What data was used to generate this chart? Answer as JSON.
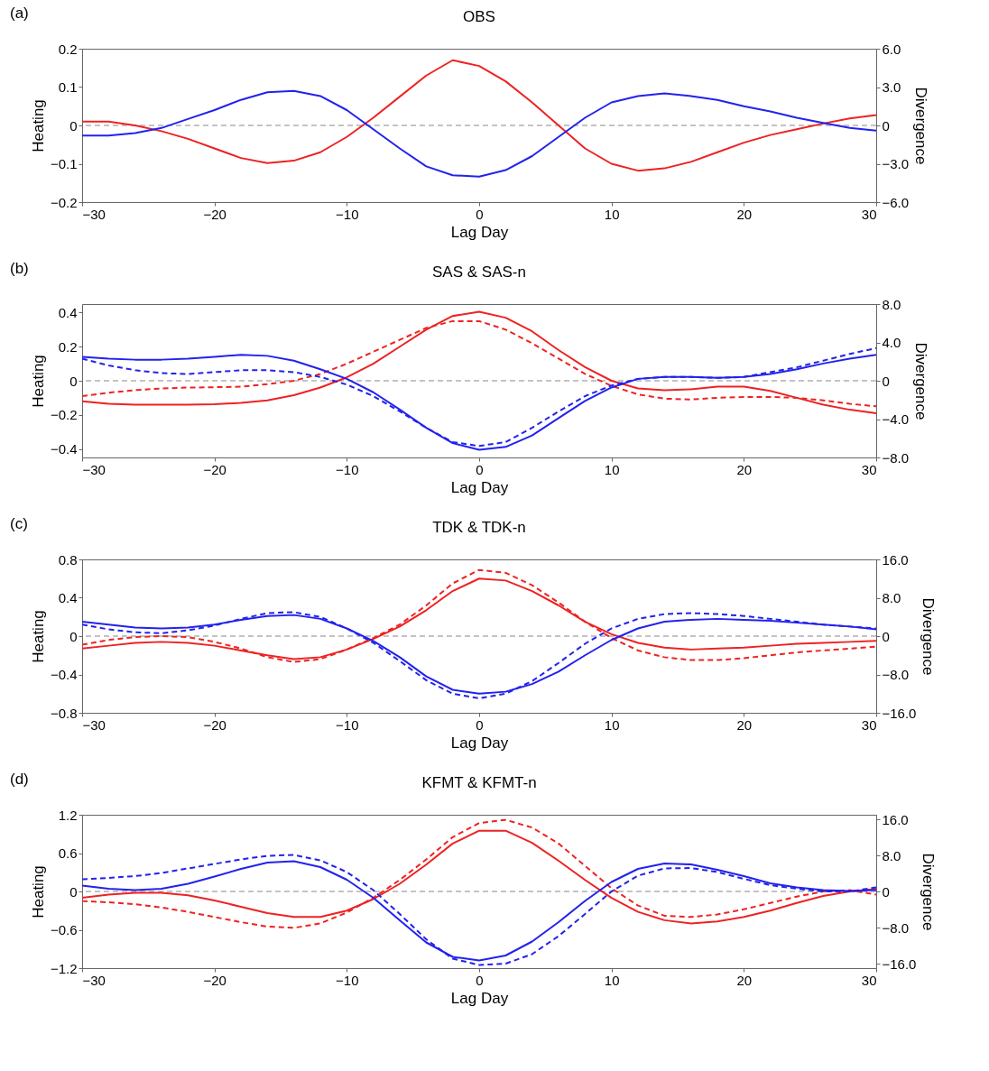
{
  "chart_data": [
    {
      "type": "line",
      "title": "OBS",
      "annotations": [
        "(a)"
      ],
      "xlabel": "Lag Day",
      "ylabel": "Heating",
      "y2label": "Divergence",
      "grid": false,
      "legend": false,
      "marker": "none",
      "x": [
        -30,
        -28,
        -26,
        -24,
        -22,
        -20,
        -18,
        -16,
        -14,
        -12,
        -10,
        -8,
        -6,
        -4,
        -2,
        0,
        2,
        4,
        6,
        8,
        10,
        12,
        14,
        16,
        18,
        20,
        22,
        24,
        26,
        28,
        30
      ],
      "xlim": [
        -30,
        30
      ],
      "xticks": [
        -30,
        -20,
        -10,
        0,
        10,
        20,
        30
      ],
      "ylim": [
        -0.2,
        0.2
      ],
      "yticks": [
        -0.2,
        -0.1,
        0,
        0.1,
        0.2
      ],
      "y2lim": [
        -6,
        6
      ],
      "y2ticks": [
        {
          "value": -6,
          "label": "−6.0"
        },
        {
          "value": -3,
          "label": "−3.0"
        },
        {
          "value": 0,
          "label": "0"
        },
        {
          "value": 3,
          "label": "3.0"
        },
        {
          "value": 6,
          "label": "6.0"
        }
      ],
      "ref_lines": [
        {
          "axis": "y",
          "value": 0,
          "color": "#888888",
          "line_style": "dashed"
        }
      ],
      "series": [
        {
          "color": "#ee2222",
          "line_style": "solid",
          "values": [
            0.01,
            0.01,
            0.0,
            -0.015,
            -0.035,
            -0.06,
            -0.085,
            -0.098,
            -0.092,
            -0.07,
            -0.03,
            0.02,
            0.075,
            0.13,
            0.17,
            0.155,
            0.115,
            0.06,
            0.0,
            -0.06,
            -0.1,
            -0.118,
            -0.112,
            -0.095,
            -0.07,
            -0.045,
            -0.025,
            -0.01,
            0.005,
            0.018,
            0.027
          ]
        },
        {
          "color": "#2222ee",
          "line_style": "solid",
          "axis": "y2",
          "values": [
            -0.8,
            -0.8,
            -0.6,
            -0.2,
            0.5,
            1.2,
            2.0,
            2.6,
            2.7,
            2.3,
            1.2,
            -0.3,
            -1.8,
            -3.2,
            -3.9,
            -4.0,
            -3.5,
            -2.4,
            -0.9,
            0.6,
            1.8,
            2.3,
            2.5,
            2.3,
            2.0,
            1.5,
            1.1,
            0.6,
            0.2,
            -0.2,
            -0.4
          ]
        }
      ]
    },
    {
      "type": "line",
      "title": "SAS & SAS-n",
      "annotations": [
        "(b)"
      ],
      "xlabel": "Lag Day",
      "ylabel": "Heating",
      "y2label": "Divergence",
      "grid": false,
      "legend": false,
      "marker": "none",
      "x": [
        -30,
        -28,
        -26,
        -24,
        -22,
        -20,
        -18,
        -16,
        -14,
        -12,
        -10,
        -8,
        -6,
        -4,
        -2,
        0,
        2,
        4,
        6,
        8,
        10,
        12,
        14,
        16,
        18,
        20,
        22,
        24,
        26,
        28,
        30
      ],
      "xlim": [
        -30,
        30
      ],
      "xticks": [
        -30,
        -20,
        -10,
        0,
        10,
        20,
        30
      ],
      "ylim": [
        -0.45,
        0.45
      ],
      "yticks": [
        -0.4,
        -0.2,
        0,
        0.2,
        0.4
      ],
      "y2lim": [
        -8,
        8
      ],
      "y2ticks": [
        {
          "value": -8,
          "label": "−8.0"
        },
        {
          "value": -4,
          "label": "−4.0"
        },
        {
          "value": 0,
          "label": "0"
        },
        {
          "value": 4,
          "label": "4.0"
        },
        {
          "value": 8,
          "label": "8.0"
        }
      ],
      "ref_lines": [
        {
          "axis": "y",
          "value": 0,
          "color": "#888888",
          "line_style": "dashed"
        }
      ],
      "series": [
        {
          "color": "#ee2222",
          "line_style": "solid",
          "values": [
            -0.12,
            -0.135,
            -0.14,
            -0.14,
            -0.14,
            -0.138,
            -0.13,
            -0.115,
            -0.085,
            -0.04,
            0.02,
            0.1,
            0.2,
            0.3,
            0.38,
            0.405,
            0.37,
            0.29,
            0.18,
            0.08,
            0.0,
            -0.045,
            -0.055,
            -0.05,
            -0.035,
            -0.035,
            -0.06,
            -0.1,
            -0.14,
            -0.17,
            -0.19
          ]
        },
        {
          "color": "#ee2222",
          "line_style": "dashed",
          "values": [
            -0.09,
            -0.07,
            -0.055,
            -0.045,
            -0.04,
            -0.038,
            -0.035,
            -0.02,
            0.0,
            0.04,
            0.1,
            0.17,
            0.24,
            0.31,
            0.35,
            0.35,
            0.3,
            0.22,
            0.13,
            0.04,
            -0.03,
            -0.08,
            -0.105,
            -0.11,
            -0.1,
            -0.095,
            -0.095,
            -0.1,
            -0.115,
            -0.135,
            -0.15
          ]
        },
        {
          "color": "#2222ee",
          "line_style": "solid",
          "axis": "y2",
          "values": [
            2.5,
            2.3,
            2.2,
            2.2,
            2.3,
            2.5,
            2.7,
            2.6,
            2.1,
            1.2,
            0.2,
            -1.2,
            -3.0,
            -4.9,
            -6.5,
            -7.2,
            -6.9,
            -5.7,
            -3.9,
            -2.1,
            -0.7,
            0.2,
            0.4,
            0.4,
            0.3,
            0.4,
            0.7,
            1.2,
            1.8,
            2.3,
            2.7
          ]
        },
        {
          "color": "#2222ee",
          "line_style": "dashed",
          "axis": "y2",
          "values": [
            2.3,
            1.6,
            1.1,
            0.8,
            0.7,
            0.9,
            1.1,
            1.1,
            0.9,
            0.4,
            -0.4,
            -1.6,
            -3.2,
            -4.9,
            -6.4,
            -6.8,
            -6.4,
            -4.9,
            -3.2,
            -1.6,
            -0.5,
            0.2,
            0.4,
            0.4,
            0.3,
            0.4,
            0.9,
            1.4,
            2.1,
            2.8,
            3.4
          ]
        }
      ]
    },
    {
      "type": "line",
      "title": "TDK & TDK-n",
      "annotations": [
        "(c)"
      ],
      "xlabel": "Lag Day",
      "ylabel": "Heating",
      "y2label": "Divergence",
      "grid": false,
      "legend": false,
      "marker": "none",
      "x": [
        -30,
        -28,
        -26,
        -24,
        -22,
        -20,
        -18,
        -16,
        -14,
        -12,
        -10,
        -8,
        -6,
        -4,
        -2,
        0,
        2,
        4,
        6,
        8,
        10,
        12,
        14,
        16,
        18,
        20,
        22,
        24,
        26,
        28,
        30
      ],
      "xlim": [
        -30,
        30
      ],
      "xticks": [
        -30,
        -20,
        -10,
        0,
        10,
        20,
        30
      ],
      "ylim": [
        -0.8,
        0.8
      ],
      "yticks": [
        -0.8,
        -0.4,
        0,
        0.4,
        0.8
      ],
      "y2lim": [
        -16,
        16
      ],
      "y2ticks": [
        {
          "value": -16,
          "label": "−16.0"
        },
        {
          "value": -8,
          "label": "−8.0"
        },
        {
          "value": 0,
          "label": "0"
        },
        {
          "value": 8,
          "label": "8.0"
        },
        {
          "value": 16,
          "label": "16.0"
        }
      ],
      "ref_lines": [
        {
          "axis": "y",
          "value": 0,
          "color": "#888888",
          "line_style": "dashed"
        }
      ],
      "series": [
        {
          "color": "#ee2222",
          "line_style": "solid",
          "values": [
            -0.13,
            -0.1,
            -0.07,
            -0.06,
            -0.07,
            -0.1,
            -0.15,
            -0.2,
            -0.24,
            -0.22,
            -0.14,
            -0.03,
            0.1,
            0.27,
            0.47,
            0.6,
            0.58,
            0.47,
            0.32,
            0.15,
            0.02,
            -0.07,
            -0.12,
            -0.14,
            -0.13,
            -0.12,
            -0.1,
            -0.08,
            -0.07,
            -0.06,
            -0.05
          ]
        },
        {
          "color": "#ee2222",
          "line_style": "dashed",
          "values": [
            -0.09,
            -0.04,
            -0.01,
            0.0,
            -0.01,
            -0.06,
            -0.13,
            -0.22,
            -0.27,
            -0.24,
            -0.14,
            -0.02,
            0.12,
            0.32,
            0.55,
            0.69,
            0.66,
            0.53,
            0.35,
            0.15,
            -0.02,
            -0.15,
            -0.22,
            -0.25,
            -0.25,
            -0.23,
            -0.2,
            -0.17,
            -0.15,
            -0.13,
            -0.11
          ]
        },
        {
          "color": "#2222ee",
          "line_style": "solid",
          "axis": "y2",
          "values": [
            3.0,
            2.4,
            1.8,
            1.6,
            1.8,
            2.4,
            3.4,
            4.2,
            4.4,
            3.6,
            1.6,
            -1.0,
            -4.4,
            -8.4,
            -11.2,
            -12.0,
            -11.6,
            -10.0,
            -7.4,
            -4.0,
            -0.8,
            1.6,
            3.0,
            3.4,
            3.6,
            3.4,
            3.2,
            2.8,
            2.4,
            2.0,
            1.4
          ]
        },
        {
          "color": "#2222ee",
          "line_style": "dashed",
          "axis": "y2",
          "values": [
            2.4,
            1.4,
            0.8,
            0.6,
            1.2,
            2.2,
            3.6,
            4.8,
            5.0,
            4.0,
            1.6,
            -1.4,
            -5.2,
            -9.2,
            -12.0,
            -13.0,
            -12.0,
            -9.4,
            -5.6,
            -1.6,
            1.6,
            3.6,
            4.6,
            4.8,
            4.6,
            4.2,
            3.6,
            3.0,
            2.4,
            2.0,
            1.6
          ]
        }
      ]
    },
    {
      "type": "line",
      "title": "KFMT & KFMT-n",
      "annotations": [
        "(d)"
      ],
      "xlabel": "Lag Day",
      "ylabel": "Heating",
      "y2label": "Divergence",
      "grid": false,
      "legend": false,
      "marker": "none",
      "x": [
        -30,
        -28,
        -26,
        -24,
        -22,
        -20,
        -18,
        -16,
        -14,
        -12,
        -10,
        -8,
        -6,
        -4,
        -2,
        0,
        2,
        4,
        6,
        8,
        10,
        12,
        14,
        16,
        18,
        20,
        22,
        24,
        26,
        28,
        30
      ],
      "xlim": [
        -30,
        30
      ],
      "xticks": [
        -30,
        -20,
        -10,
        0,
        10,
        20,
        30
      ],
      "ylim": [
        -1.2,
        1.2
      ],
      "yticks": [
        -1.2,
        -0.6,
        0,
        0.6,
        1.2
      ],
      "y2lim": [
        -17,
        17
      ],
      "y2ticks": [
        {
          "value": -16,
          "label": "−16.0"
        },
        {
          "value": -8,
          "label": "−8.0"
        },
        {
          "value": 0,
          "label": "0"
        },
        {
          "value": 8,
          "label": "8.0"
        },
        {
          "value": 16,
          "label": "16.0"
        }
      ],
      "ref_lines": [
        {
          "axis": "y",
          "value": 0,
          "color": "#888888",
          "line_style": "dashed"
        }
      ],
      "series": [
        {
          "color": "#ee2222",
          "line_style": "solid",
          "values": [
            -0.1,
            -0.05,
            -0.02,
            -0.02,
            -0.06,
            -0.14,
            -0.24,
            -0.34,
            -0.4,
            -0.4,
            -0.3,
            -0.12,
            0.12,
            0.42,
            0.75,
            0.95,
            0.95,
            0.76,
            0.48,
            0.18,
            -0.1,
            -0.32,
            -0.45,
            -0.5,
            -0.47,
            -0.4,
            -0.3,
            -0.18,
            -0.07,
            0.0,
            0.04
          ]
        },
        {
          "color": "#ee2222",
          "line_style": "dashed",
          "values": [
            -0.15,
            -0.17,
            -0.2,
            -0.25,
            -0.32,
            -0.4,
            -0.48,
            -0.55,
            -0.57,
            -0.5,
            -0.33,
            -0.1,
            0.18,
            0.5,
            0.85,
            1.07,
            1.12,
            1.0,
            0.75,
            0.4,
            0.05,
            -0.22,
            -0.38,
            -0.4,
            -0.36,
            -0.28,
            -0.18,
            -0.08,
            0.0,
            0.02,
            -0.05
          ]
        },
        {
          "color": "#2222ee",
          "line_style": "solid",
          "axis": "y2",
          "values": [
            1.3,
            0.6,
            0.3,
            0.6,
            1.7,
            3.3,
            5.0,
            6.4,
            6.7,
            5.4,
            2.6,
            -1.4,
            -6.4,
            -11.3,
            -14.5,
            -15.3,
            -14.2,
            -11.1,
            -6.8,
            -2.1,
            2.1,
            5.0,
            6.2,
            6.0,
            4.8,
            3.4,
            1.8,
            0.9,
            0.3,
            0.1,
            0.3
          ]
        },
        {
          "color": "#2222ee",
          "line_style": "dashed",
          "axis": "y2",
          "values": [
            2.7,
            3.0,
            3.4,
            4.1,
            5.1,
            6.1,
            7.1,
            7.9,
            8.1,
            6.9,
            4.3,
            0.3,
            -5.0,
            -10.6,
            -14.9,
            -16.3,
            -16.0,
            -13.9,
            -9.9,
            -5.0,
            0,
            3.5,
            5.1,
            5.2,
            4.3,
            2.8,
            1.4,
            0.6,
            0,
            0,
            0.9
          ]
        }
      ]
    }
  ]
}
